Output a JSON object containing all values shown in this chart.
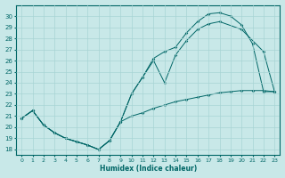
{
  "xlabel": "Humidex (Indice chaleur)",
  "bg_color": "#c8e8e8",
  "line_color": "#006666",
  "grid_color": "#a8d4d4",
  "xlim": [
    -0.5,
    23.5
  ],
  "ylim": [
    17.5,
    31.0
  ],
  "xticks": [
    0,
    1,
    2,
    3,
    4,
    5,
    6,
    7,
    8,
    9,
    10,
    11,
    12,
    13,
    14,
    15,
    16,
    17,
    18,
    19,
    20,
    21,
    22,
    23
  ],
  "yticks": [
    18,
    19,
    20,
    21,
    22,
    23,
    24,
    25,
    26,
    27,
    28,
    29,
    30
  ],
  "line1_x": [
    0,
    1,
    2,
    3,
    4,
    5,
    6,
    7,
    8,
    9,
    10,
    11,
    12,
    13,
    14,
    15,
    16,
    17,
    18,
    19,
    20,
    21,
    22,
    23
  ],
  "line1_y": [
    20.8,
    21.5,
    20.2,
    19.5,
    19.0,
    18.7,
    18.4,
    18.0,
    18.8,
    20.5,
    21.0,
    21.3,
    21.7,
    22.0,
    22.3,
    22.5,
    22.7,
    22.9,
    23.1,
    23.2,
    23.3,
    23.3,
    23.3,
    23.2
  ],
  "line2_x": [
    0,
    1,
    2,
    3,
    4,
    5,
    6,
    7,
    8,
    9,
    10,
    11,
    12,
    13,
    14,
    15,
    16,
    17,
    18,
    19,
    20,
    21,
    22,
    23
  ],
  "line2_y": [
    20.8,
    21.5,
    20.2,
    19.5,
    19.0,
    18.7,
    18.4,
    18.0,
    18.8,
    20.5,
    23.0,
    24.5,
    26.2,
    26.8,
    27.2,
    28.5,
    29.5,
    30.2,
    30.3,
    30.0,
    29.2,
    27.5,
    23.2,
    23.2
  ],
  "line3_x": [
    0,
    1,
    2,
    3,
    4,
    5,
    6,
    7,
    8,
    9,
    10,
    11,
    12,
    13,
    14,
    15,
    16,
    17,
    18,
    20,
    22,
    23
  ],
  "line3_y": [
    20.8,
    21.5,
    20.2,
    19.5,
    19.0,
    18.7,
    18.4,
    18.0,
    18.8,
    20.5,
    23.0,
    24.5,
    26.0,
    24.0,
    26.5,
    27.8,
    28.8,
    29.3,
    29.5,
    28.8,
    26.8,
    23.2
  ]
}
